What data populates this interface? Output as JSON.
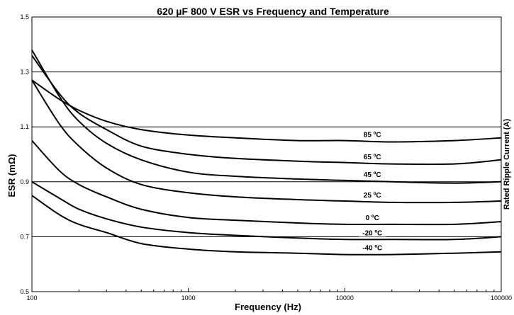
{
  "chart_data": {
    "type": "line",
    "title": "620 µF 800 V  ESR vs Frequency and Temperature",
    "xlabel": "Frequency (Hz)",
    "ylabel": "ESR (mΩ)",
    "x_scale": "log",
    "xlim": [
      100,
      100000
    ],
    "ylim": [
      0.5,
      1.5
    ],
    "x_ticks": [
      "100",
      "1000",
      "10000",
      "100000"
    ],
    "y_ticks": [
      "0.5",
      "0.7",
      "0.9",
      "1.1",
      "1.3",
      "1.5"
    ],
    "y_gridlines": [
      0.7,
      0.9,
      1.1,
      1.3
    ],
    "series": [
      {
        "name": "85 ºC",
        "x": [
          100,
          150,
          200,
          300,
          500,
          1000,
          2000,
          5000,
          10000,
          20000,
          50000,
          100000
        ],
        "y": [
          1.27,
          1.2,
          1.16,
          1.12,
          1.09,
          1.07,
          1.06,
          1.05,
          1.05,
          1.045,
          1.05,
          1.06
        ]
      },
      {
        "name": "65 ºC",
        "x": [
          100,
          150,
          200,
          300,
          500,
          1000,
          2000,
          5000,
          10000,
          20000,
          50000,
          100000
        ],
        "y": [
          1.36,
          1.22,
          1.15,
          1.09,
          1.03,
          1.0,
          0.985,
          0.975,
          0.97,
          0.965,
          0.965,
          0.98
        ]
      },
      {
        "name": "45 ºC",
        "x": [
          100,
          150,
          200,
          300,
          500,
          1000,
          2000,
          5000,
          10000,
          20000,
          50000,
          100000
        ],
        "y": [
          1.38,
          1.21,
          1.12,
          1.04,
          0.98,
          0.935,
          0.92,
          0.91,
          0.905,
          0.9,
          0.895,
          0.9
        ]
      },
      {
        "name": "25 ºC",
        "x": [
          100,
          150,
          200,
          300,
          500,
          1000,
          2000,
          5000,
          10000,
          20000,
          50000,
          100000
        ],
        "y": [
          1.27,
          1.11,
          1.03,
          0.95,
          0.89,
          0.86,
          0.845,
          0.835,
          0.83,
          0.825,
          0.825,
          0.83
        ]
      },
      {
        "name": "0 ºC",
        "x": [
          100,
          150,
          200,
          300,
          500,
          1000,
          2000,
          5000,
          10000,
          20000,
          50000,
          100000
        ],
        "y": [
          1.05,
          0.94,
          0.89,
          0.845,
          0.8,
          0.77,
          0.76,
          0.75,
          0.745,
          0.745,
          0.745,
          0.755
        ]
      },
      {
        "name": "-20 ºC",
        "x": [
          100,
          150,
          200,
          300,
          500,
          1000,
          2000,
          5000,
          10000,
          20000,
          50000,
          100000
        ],
        "y": [
          0.9,
          0.84,
          0.8,
          0.765,
          0.735,
          0.715,
          0.705,
          0.695,
          0.69,
          0.69,
          0.69,
          0.7
        ]
      },
      {
        "name": "-40 ºC",
        "x": [
          100,
          150,
          200,
          300,
          500,
          1000,
          2000,
          5000,
          10000,
          20000,
          50000,
          100000
        ],
        "y": [
          0.85,
          0.78,
          0.745,
          0.715,
          0.675,
          0.655,
          0.645,
          0.64,
          0.635,
          0.635,
          0.64,
          0.645
        ]
      }
    ],
    "legend": "inline-labels",
    "grid": "horizontal"
  },
  "edge_text": "Rated Ripple Current (A)"
}
